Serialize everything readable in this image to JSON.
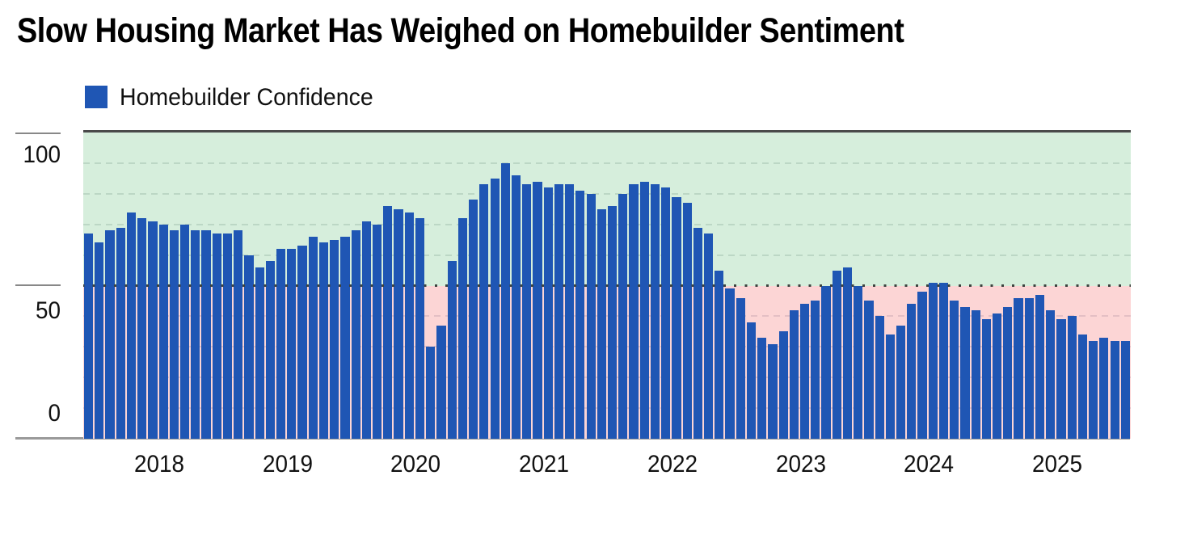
{
  "title": "Slow Housing Market Has Weighed on Homebuilder Sentiment",
  "legend": {
    "label": "Homebuilder Confidence",
    "swatch_color": "#1f56b4"
  },
  "y_axis": {
    "tick_labels": [
      "100",
      "50",
      "0"
    ]
  },
  "x_axis": {
    "year_labels": [
      "2018",
      "2019",
      "2020",
      "2021",
      "2022",
      "2023",
      "2024",
      "2025"
    ]
  },
  "colors": {
    "bar": "#1f56b4",
    "background_above_threshold": "#d6eedc",
    "background_below_threshold": "#fcd5d5",
    "gridline_green_zone": "#bcd7c5",
    "gridline_pink_zone": "#e4bfc4",
    "threshold_line": "#3d433f",
    "plot_top_border": "#4a4a4a",
    "axis_line": "#9a9a9a",
    "text": "#111111"
  },
  "chart_data": {
    "type": "bar",
    "title": "Slow Housing Market Has Weighed on Homebuilder Sentiment",
    "series_name": "Homebuilder Confidence",
    "ylabel": "",
    "xlabel": "",
    "ylim": [
      0,
      100
    ],
    "y_ticks": [
      0,
      50,
      100
    ],
    "gridlines_every": 10,
    "threshold": 50,
    "legend_position": "top-left",
    "note": "Background shaded green above 50 and pink below 50; dotted dark line at 50",
    "x": [
      "2017-08",
      "2017-09",
      "2017-10",
      "2017-11",
      "2017-12",
      "2018-01",
      "2018-02",
      "2018-03",
      "2018-04",
      "2018-05",
      "2018-06",
      "2018-07",
      "2018-08",
      "2018-09",
      "2018-10",
      "2018-11",
      "2018-12",
      "2019-01",
      "2019-02",
      "2019-03",
      "2019-04",
      "2019-05",
      "2019-06",
      "2019-07",
      "2019-08",
      "2019-09",
      "2019-10",
      "2019-11",
      "2019-12",
      "2020-01",
      "2020-02",
      "2020-03",
      "2020-04",
      "2020-05",
      "2020-06",
      "2020-07",
      "2020-08",
      "2020-09",
      "2020-10",
      "2020-11",
      "2020-12",
      "2021-01",
      "2021-02",
      "2021-03",
      "2021-04",
      "2021-05",
      "2021-06",
      "2021-07",
      "2021-08",
      "2021-09",
      "2021-10",
      "2021-11",
      "2021-12",
      "2022-01",
      "2022-02",
      "2022-03",
      "2022-04",
      "2022-05",
      "2022-06",
      "2022-07",
      "2022-08",
      "2022-09",
      "2022-10",
      "2022-11",
      "2022-12",
      "2023-01",
      "2023-02",
      "2023-03",
      "2023-04",
      "2023-05",
      "2023-06",
      "2023-07",
      "2023-08",
      "2023-09",
      "2023-10",
      "2023-11",
      "2023-12",
      "2024-01",
      "2024-02",
      "2024-03",
      "2024-04",
      "2024-05",
      "2024-06",
      "2024-07",
      "2024-08",
      "2024-09",
      "2024-10",
      "2024-11",
      "2024-12",
      "2025-01",
      "2025-02",
      "2025-03",
      "2025-04",
      "2025-05",
      "2025-06",
      "2025-07",
      "2025-08",
      "2025-09"
    ],
    "values": [
      67,
      64,
      68,
      69,
      74,
      72,
      71,
      70,
      68,
      70,
      68,
      68,
      67,
      67,
      68,
      60,
      56,
      58,
      62,
      62,
      63,
      66,
      64,
      65,
      66,
      68,
      71,
      70,
      76,
      75,
      74,
      72,
      30,
      37,
      58,
      72,
      78,
      83,
      85,
      90,
      86,
      83,
      84,
      82,
      83,
      83,
      81,
      80,
      75,
      76,
      80,
      83,
      84,
      83,
      82,
      79,
      77,
      69,
      67,
      55,
      49,
      46,
      38,
      33,
      31,
      35,
      42,
      44,
      45,
      50,
      55,
      56,
      50,
      45,
      40,
      34,
      37,
      44,
      48,
      51,
      51,
      45,
      43,
      42,
      39,
      41,
      43,
      46,
      46,
      47,
      42,
      39,
      40,
      34,
      32,
      33,
      32,
      32
    ]
  }
}
